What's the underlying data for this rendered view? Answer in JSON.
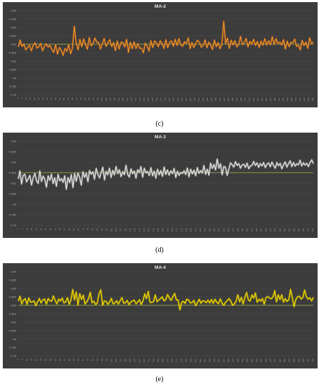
{
  "figure": {
    "captions": [
      "(c)",
      "(d)",
      "(e)"
    ]
  },
  "colors": {
    "background": "#3c3c3c",
    "gridline": "#4d4d4d",
    "reference_line": "#a8b84a"
  },
  "chart_data": [
    {
      "type": "line",
      "title": "MA-2",
      "color": "#e8a020",
      "glow": "#d04a2a",
      "ylim": [
        0.79,
        0.84
      ],
      "yticks": [
        "0.84",
        "0.835",
        "0.83",
        "0.825",
        "0.82",
        "0.815",
        "0.81",
        "0.805",
        "0.8",
        "0.795",
        "0.79"
      ],
      "x_range": [
        1,
        351
      ],
      "reference_y": 0.82,
      "series": [
        {
          "name": "",
          "values": [
            0.8183,
            0.8224,
            0.8187,
            0.8201,
            0.8166,
            0.8181,
            0.8195,
            0.8161,
            0.8193,
            0.8209,
            0.8177,
            0.8185,
            0.8205,
            0.8161,
            0.8186,
            0.8202,
            0.8183,
            0.8194,
            0.8168,
            0.8152,
            0.8197,
            0.8141,
            0.8181,
            0.8164,
            0.8133,
            0.8175,
            0.8158,
            0.8198,
            0.8143,
            0.8176,
            0.8307,
            0.8208,
            0.8166,
            0.8229,
            0.8185,
            0.8231,
            0.8199,
            0.817,
            0.824,
            0.819,
            0.8202,
            0.8237,
            0.8211,
            0.8211,
            0.8171,
            0.8202,
            0.8234,
            0.8187,
            0.8208,
            0.8227,
            0.8186,
            0.821,
            0.8162,
            0.8219,
            0.8171,
            0.8212,
            0.8211,
            0.8184,
            0.8229,
            0.8151,
            0.8211,
            0.8173,
            0.8214,
            0.8174,
            0.8203,
            0.8175,
            0.8178,
            0.8149,
            0.8206,
            0.8188,
            0.816,
            0.8221,
            0.818,
            0.8219,
            0.8208,
            0.8185,
            0.822,
            0.8203,
            0.8175,
            0.8227,
            0.8179,
            0.821,
            0.822,
            0.8188,
            0.8229,
            0.8193,
            0.8233,
            0.8196,
            0.8188,
            0.8215,
            0.8203,
            0.8238,
            0.8174,
            0.821,
            0.818,
            0.8206,
            0.8224,
            0.8211,
            0.8182,
            0.8193,
            0.8226,
            0.8179,
            0.8213,
            0.8195,
            0.8168,
            0.8225,
            0.8185,
            0.821,
            0.8173,
            0.8199,
            0.8337,
            0.8203,
            0.8236,
            0.8175,
            0.8224,
            0.8196,
            0.8221,
            0.8184,
            0.8198,
            0.8246,
            0.8198,
            0.8208,
            0.8235,
            0.8184,
            0.8217,
            0.8201,
            0.8229,
            0.8193,
            0.8216,
            0.8181,
            0.8218,
            0.8194,
            0.8233,
            0.8195,
            0.8221,
            0.8197,
            0.8244,
            0.8199,
            0.8233,
            0.8204,
            0.8213,
            0.8196,
            0.8227,
            0.8172,
            0.8218,
            0.8185,
            0.8211,
            0.8208,
            0.8231,
            0.8187,
            0.8193,
            0.8166,
            0.8223,
            0.8192,
            0.8213,
            0.8175,
            0.8238,
            0.8203,
            0.8213
          ]
        }
      ]
    },
    {
      "type": "line",
      "title": "MA-3",
      "color": "#e4e4e4",
      "glow": "#b8b8b8",
      "ylim": [
        0.79,
        0.83
      ],
      "yticks": [
        "0.83",
        "0.825",
        "0.82",
        "0.815",
        "0.81",
        "0.805",
        "0.8",
        "0.795",
        "0.79"
      ],
      "x_range": [
        1,
        316
      ],
      "reference_y": 0.815,
      "series": [
        {
          "name": "",
          "values": [
            0.812,
            0.8158,
            0.8096,
            0.8138,
            0.8142,
            0.8106,
            0.8121,
            0.8137,
            0.8091,
            0.8126,
            0.8147,
            0.8112,
            0.8099,
            0.8158,
            0.8108,
            0.8134,
            0.8118,
            0.8081,
            0.8135,
            0.8113,
            0.8143,
            0.8098,
            0.8126,
            0.8085,
            0.8142,
            0.8111,
            0.8122,
            0.8104,
            0.8135,
            0.8071,
            0.8127,
            0.8103,
            0.8141,
            0.8079,
            0.8146,
            0.8109,
            0.8148,
            0.8128,
            0.8091,
            0.8154,
            0.8128,
            0.8147,
            0.8107,
            0.816,
            0.8143,
            0.8154,
            0.8119,
            0.817,
            0.8142,
            0.8125,
            0.8151,
            0.8176,
            0.8116,
            0.8156,
            0.814,
            0.8171,
            0.8127,
            0.8161,
            0.8139,
            0.8179,
            0.8145,
            0.8164,
            0.8131,
            0.8155,
            0.814,
            0.8185,
            0.8142,
            0.8129,
            0.8168,
            0.8145,
            0.8158,
            0.8124,
            0.8164,
            0.815,
            0.8179,
            0.8128,
            0.8171,
            0.8149,
            0.8156,
            0.8136,
            0.8174,
            0.8135,
            0.8157,
            0.8124,
            0.8166,
            0.814,
            0.816,
            0.8132,
            0.8177,
            0.8141,
            0.8163,
            0.8138,
            0.8159,
            0.8145,
            0.817,
            0.8127,
            0.8157,
            0.8137,
            0.8151,
            0.8146,
            0.8159,
            0.8141,
            0.8172,
            0.813,
            0.8166,
            0.8144,
            0.8162,
            0.8135,
            0.8174,
            0.8147,
            0.816,
            0.8148,
            0.8184,
            0.8142,
            0.8166,
            0.8138,
            0.8195,
            0.817,
            0.8189,
            0.8163,
            0.8215,
            0.8171,
            0.8192,
            0.814,
            0.818,
            0.8175,
            0.8137,
            0.8167,
            0.8196,
            0.8188,
            0.8176,
            0.8202,
            0.8184,
            0.8193,
            0.8171,
            0.8186,
            0.819,
            0.8175,
            0.8195,
            0.8169,
            0.8181,
            0.8185,
            0.8203,
            0.8184,
            0.8196,
            0.8175,
            0.8193,
            0.8182,
            0.8198,
            0.8174,
            0.819,
            0.8196,
            0.8178,
            0.82,
            0.8184,
            0.8171,
            0.8198,
            0.8183,
            0.8194,
            0.8168,
            0.8188,
            0.8201,
            0.8176,
            0.8193,
            0.8206,
            0.8179,
            0.8198,
            0.8181,
            0.8192,
            0.8187,
            0.8209,
            0.8182,
            0.8197,
            0.8186,
            0.8194,
            0.8179,
            0.8198,
            0.8211,
            0.8193
          ]
        }
      ]
    },
    {
      "type": "line",
      "title": "MA-4",
      "color": "#f0d800",
      "glow": "#c8b400",
      "ylim": [
        0.79,
        0.84
      ],
      "yticks": [
        "0.84",
        "0.835",
        "0.83",
        "0.825",
        "0.82",
        "0.815",
        "0.81",
        "0.805",
        "0.8",
        "0.795",
        "0.79"
      ],
      "x_range": [
        1,
        316
      ],
      "reference_y": 0.82,
      "series": [
        {
          "name": "",
          "values": [
            0.8225,
            0.8254,
            0.8208,
            0.8232,
            0.8239,
            0.8205,
            0.8243,
            0.8219,
            0.822,
            0.8226,
            0.8198,
            0.8221,
            0.824,
            0.8214,
            0.8233,
            0.8237,
            0.8207,
            0.824,
            0.8227,
            0.8224,
            0.8256,
            0.8228,
            0.8209,
            0.8237,
            0.8225,
            0.8243,
            0.8214,
            0.8221,
            0.8245,
            0.8206,
            0.8232,
            0.8294,
            0.8232,
            0.8279,
            0.8201,
            0.8269,
            0.8235,
            0.826,
            0.8208,
            0.822,
            0.824,
            0.8277,
            0.8215,
            0.8224,
            0.8205,
            0.8214,
            0.8268,
            0.8292,
            0.82,
            0.8226,
            0.8224,
            0.8206,
            0.8219,
            0.8241,
            0.8209,
            0.8213,
            0.8227,
            0.8208,
            0.8227,
            0.8246,
            0.8212,
            0.8215,
            0.8229,
            0.8204,
            0.8218,
            0.8226,
            0.8231,
            0.821,
            0.8219,
            0.8233,
            0.8205,
            0.8226,
            0.8268,
            0.824,
            0.8283,
            0.8217,
            0.8217,
            0.8222,
            0.8262,
            0.8221,
            0.8232,
            0.824,
            0.825,
            0.8226,
            0.8234,
            0.8264,
            0.8243,
            0.8229,
            0.8251,
            0.827,
            0.8232,
            0.8231,
            0.8173,
            0.8216,
            0.8224,
            0.8211,
            0.8237,
            0.8231,
            0.8214,
            0.8216,
            0.8229,
            0.8198,
            0.8215,
            0.8236,
            0.8212,
            0.8227,
            0.8224,
            0.8215,
            0.8231,
            0.8214,
            0.8234,
            0.8212,
            0.8236,
            0.8218,
            0.821,
            0.8238,
            0.8213,
            0.82,
            0.8218,
            0.8228,
            0.824,
            0.8225,
            0.82,
            0.8208,
            0.8224,
            0.8262,
            0.8221,
            0.8247,
            0.8208,
            0.8247,
            0.8276,
            0.8231,
            0.8225,
            0.8261,
            0.8242,
            0.8273,
            0.8218,
            0.8236,
            0.8225,
            0.824,
            0.8207,
            0.8245,
            0.8252,
            0.8243,
            0.8239,
            0.8249,
            0.8287,
            0.822,
            0.8262,
            0.8234,
            0.8262,
            0.8219,
            0.8239,
            0.8223,
            0.8233,
            0.8294,
            0.8245,
            0.8192,
            0.8234,
            0.8251,
            0.8254,
            0.8237,
            0.8246,
            0.8291,
            0.8251,
            0.8237,
            0.8244,
            0.8226,
            0.8247
          ]
        }
      ]
    }
  ]
}
